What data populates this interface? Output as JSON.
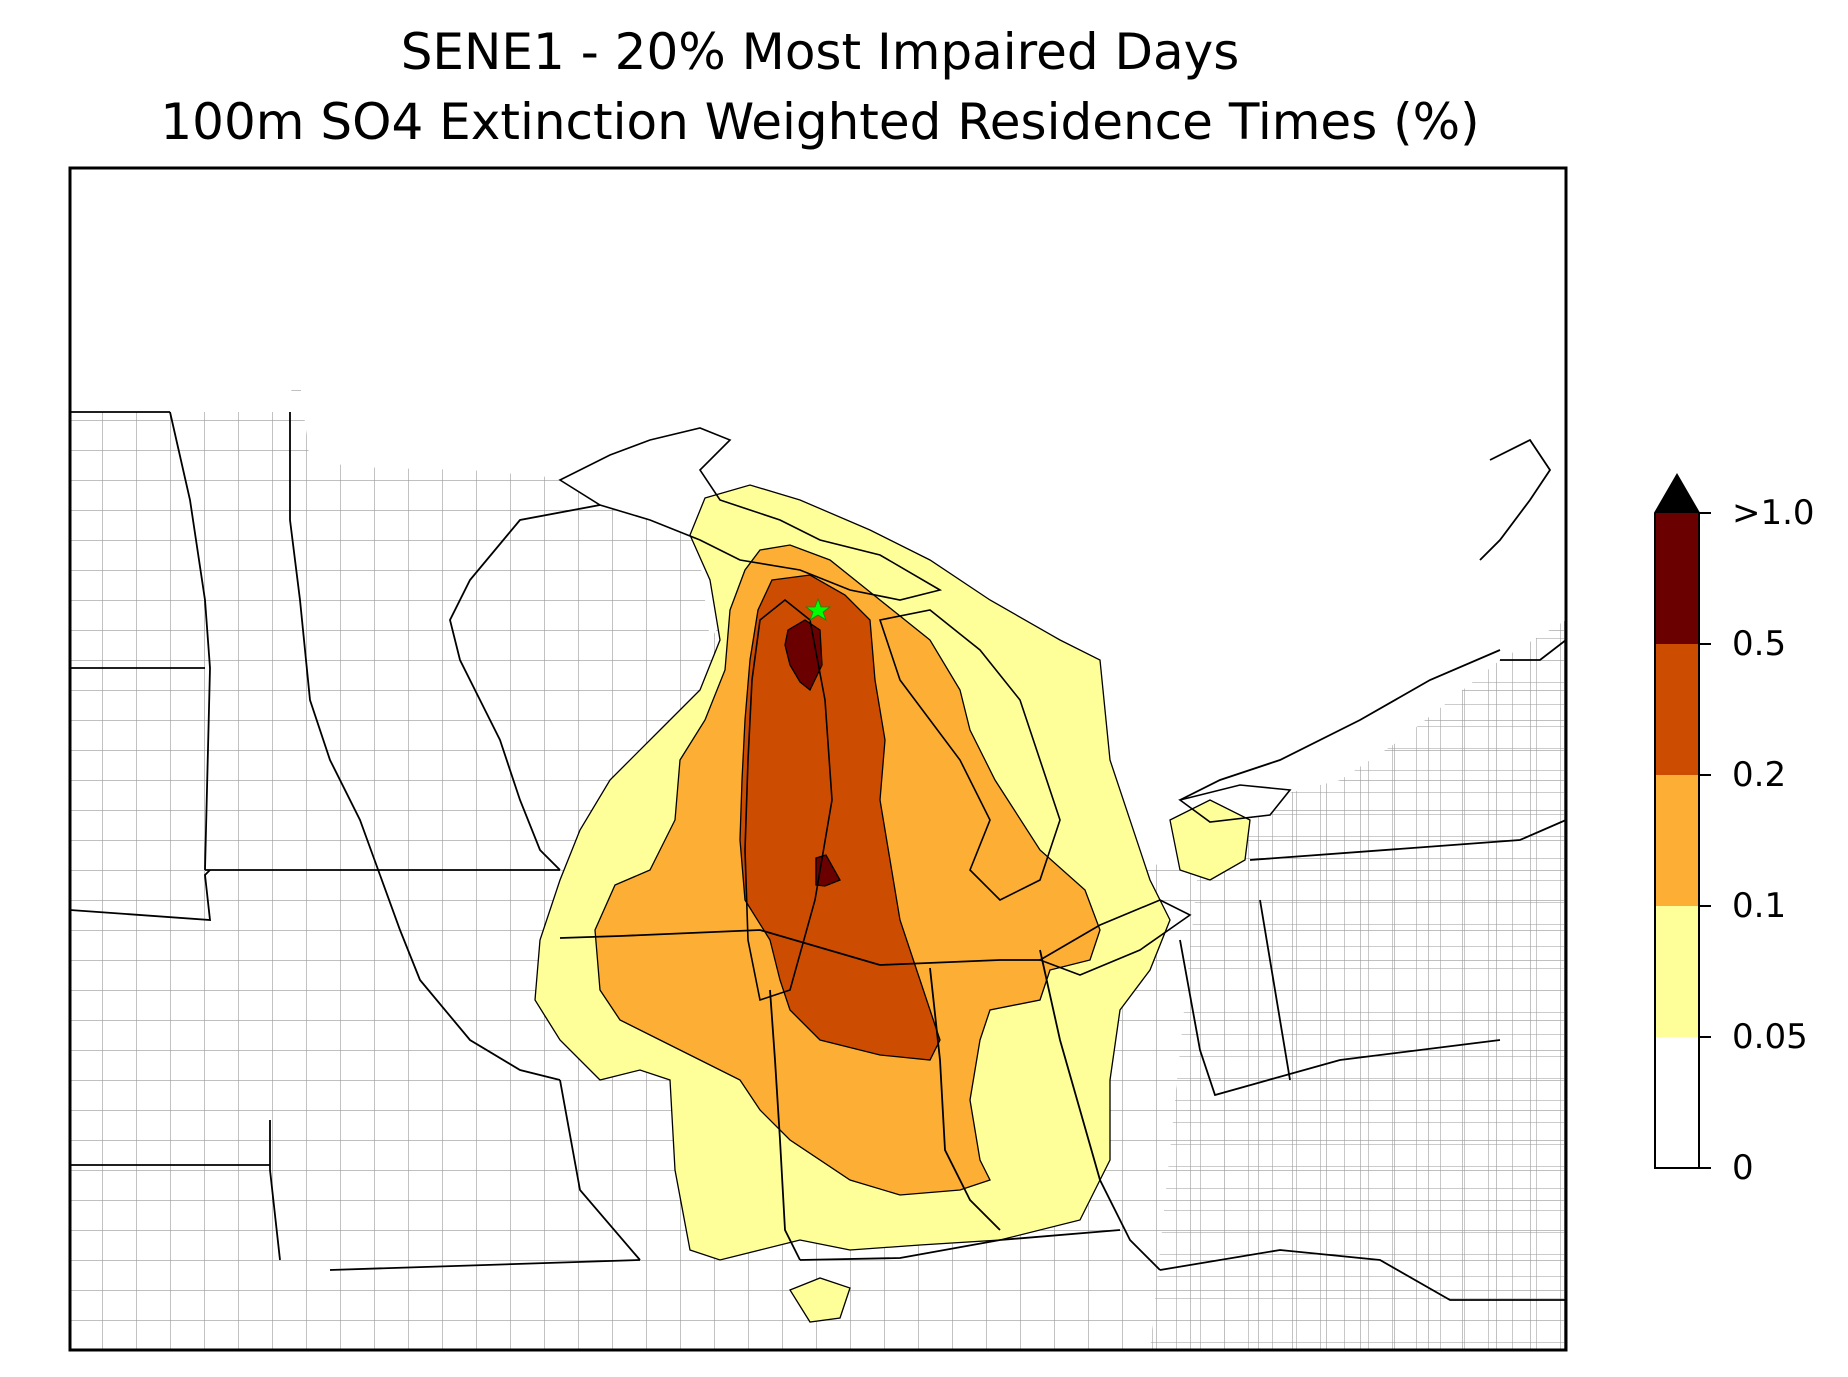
{
  "title": {
    "line1": "SENE1 - 20% Most Impaired Days",
    "line2": "100m SO4 Extinction Weighted Residence Times (%)"
  },
  "colorbar": {
    "extend": "max",
    "levels": [
      {
        "label": "0",
        "value": 0,
        "color": "#ffffff"
      },
      {
        "label": "0.05",
        "value": 0.05,
        "color": "#ffff99"
      },
      {
        "label": "0.1",
        "value": 0.1,
        "color": "#fdae35"
      },
      {
        "label": "0.2",
        "value": 0.2,
        "color": "#cc4d02"
      },
      {
        "label": "0.5",
        "value": 0.5,
        "color": "#6b0000"
      },
      {
        "label": ">1.0",
        "value": 1.0,
        "color": "#000000"
      }
    ]
  },
  "map": {
    "region": "Great Lakes / Midwest United States",
    "boundaries": [
      "state",
      "county"
    ],
    "receptor_marker": {
      "symbol": "star",
      "color": "#00ff00"
    }
  },
  "colors": {
    "state_border": "#000000",
    "county_border": "#9a9a9a"
  }
}
